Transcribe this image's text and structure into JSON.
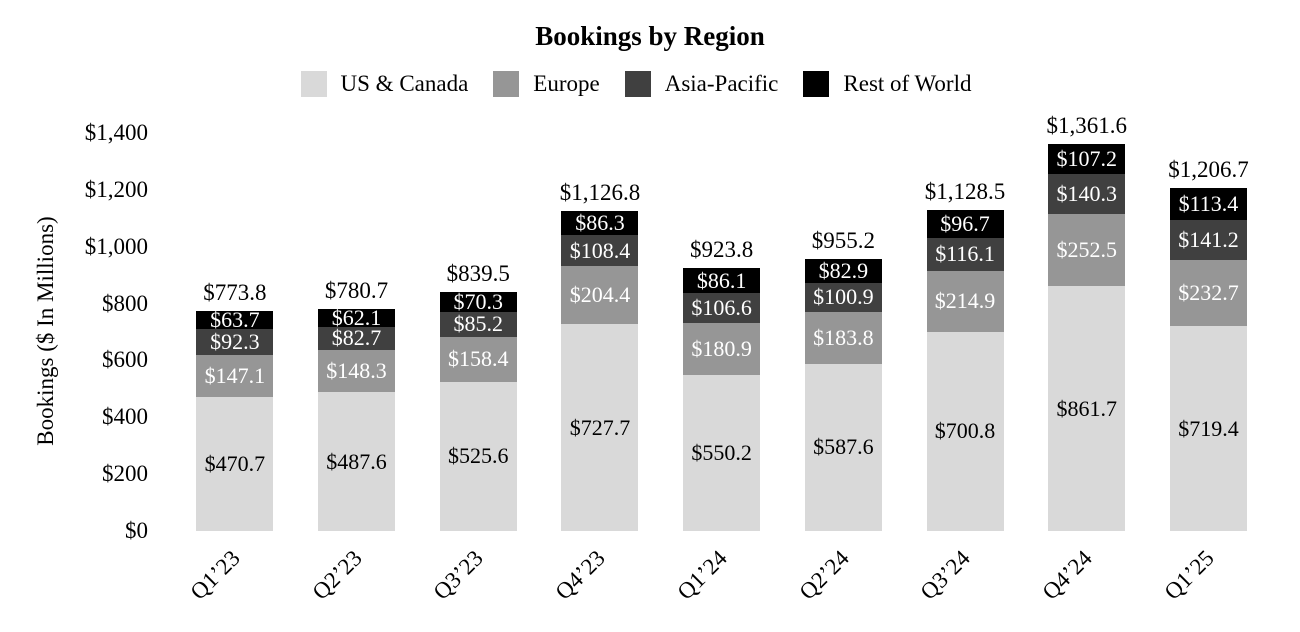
{
  "chart_data": {
    "type": "bar",
    "stacked": true,
    "title": "Bookings by Region",
    "ylabel": "Bookings ($ In Millions)",
    "xlabel": "",
    "ylim": [
      0,
      1400
    ],
    "grid": false,
    "legend_position": "top",
    "background": "#ffffff",
    "value_prefix": "$",
    "y_ticks": [
      {
        "value": 0,
        "label": "$0"
      },
      {
        "value": 200,
        "label": "$200"
      },
      {
        "value": 400,
        "label": "$400"
      },
      {
        "value": 600,
        "label": "$600"
      },
      {
        "value": 800,
        "label": "$800"
      },
      {
        "value": 1000,
        "label": "$1,000"
      },
      {
        "value": 1200,
        "label": "$1,200"
      },
      {
        "value": 1400,
        "label": "$1,400"
      }
    ],
    "categories": [
      "Q1’23",
      "Q2’23",
      "Q3’23",
      "Q4’23",
      "Q1’24",
      "Q2’24",
      "Q3’24",
      "Q4’24",
      "Q1’25"
    ],
    "series": [
      {
        "name": "US & Canada",
        "color": "#d9d9d9",
        "label_color": "#000000",
        "values": [
          470.7,
          487.6,
          525.6,
          727.7,
          550.2,
          587.6,
          700.8,
          861.7,
          719.4
        ]
      },
      {
        "name": "Europe",
        "color": "#969696",
        "label_color": "#ffffff",
        "values": [
          147.1,
          148.3,
          158.4,
          204.4,
          180.9,
          183.8,
          214.9,
          252.5,
          232.7
        ]
      },
      {
        "name": "Asia-Pacific",
        "color": "#404040",
        "label_color": "#ffffff",
        "values": [
          92.3,
          82.7,
          85.2,
          108.4,
          106.6,
          100.9,
          116.1,
          140.3,
          141.2
        ]
      },
      {
        "name": "Rest of World",
        "color": "#000000",
        "label_color": "#ffffff",
        "values": [
          63.7,
          62.1,
          70.3,
          86.3,
          86.1,
          82.9,
          96.7,
          107.2,
          113.4
        ]
      }
    ],
    "totals": [
      773.8,
      780.7,
      839.5,
      1126.8,
      923.8,
      955.2,
      1128.5,
      1361.6,
      1206.7
    ],
    "total_labels": [
      "$773.8",
      "$780.7",
      "$839.5",
      "$1,126.8",
      "$923.8",
      "$955.2",
      "$1,128.5",
      "$1,361.6",
      "$1,206.7"
    ]
  }
}
